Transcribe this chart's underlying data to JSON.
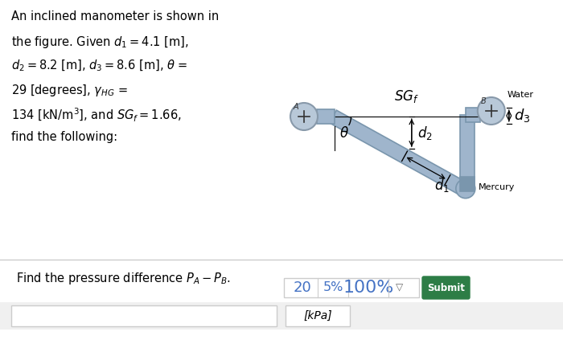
{
  "bg_color": "#ffffff",
  "left_lines": [
    "An inclined manometer is shown in",
    "the figure. Given $d_1 = 4.1$ [m],",
    "$d_2 = 8.2$ [m], $d_3 = 8.6$ [m], $\\theta$ =",
    "29 [degrees], $\\gamma_{HG}$ =",
    "134 [kN/m$^3$], and $SG_f = 1.66$,",
    "find the following:"
  ],
  "question_text": "Find the pressure difference $P_A - P_B$.",
  "kpa_label": "[kPa]",
  "btn_20": "20",
  "btn_5": "5%",
  "btn_100": "100%",
  "btn_arrow": "▽",
  "submit_text": "Submit",
  "submit_color": "#2d7d46",
  "submit_text_color": "#ffffff",
  "water_label": "Water",
  "mercury_label": "Mercury",
  "SGf_label": "$SG_f$",
  "theta_label": "$\\theta$",
  "d1_label": "$d_1$",
  "d2_label": "$d_2$",
  "d3_label": "$d_3$",
  "A_label": "A",
  "B_label": "B",
  "tube_fill": "#9fb5cc",
  "tube_edge": "#7a96ad",
  "circle_fill": "#b8c8d8",
  "circle_edge": "#8899aa",
  "sep_color": "#cccccc",
  "btn_text_color": "#4472c4",
  "btn_border": "#cccccc"
}
